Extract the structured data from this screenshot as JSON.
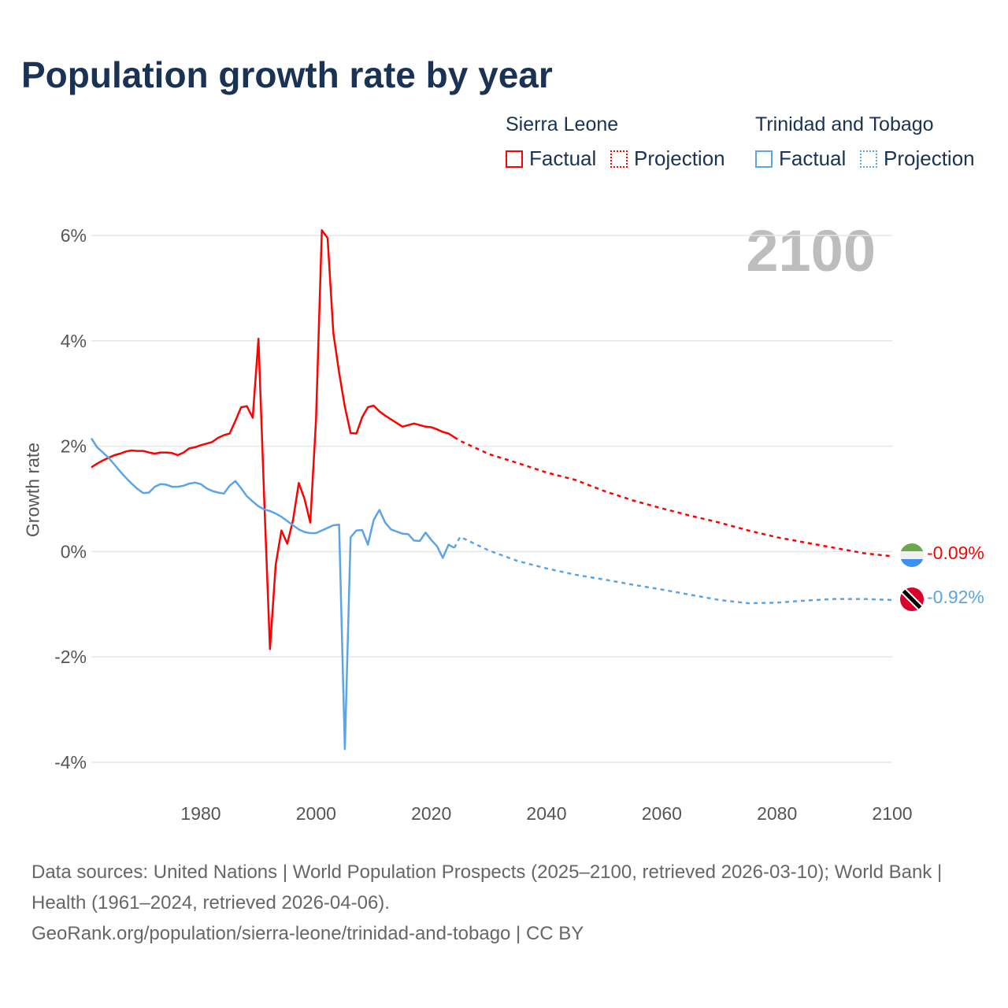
{
  "title": "Population growth rate by year",
  "current_year": "2100",
  "legend": {
    "groups": [
      {
        "name": "Sierra Leone",
        "factual": "Factual",
        "projection": "Projection",
        "color": "#ff0000"
      },
      {
        "name": "Trinidad and Tobago",
        "factual": "Factual",
        "projection": "Projection",
        "color": "#5ba4e6"
      }
    ]
  },
  "end_labels": {
    "sierra_leone": "-0.09%",
    "trinidad": "-0.92%"
  },
  "footer": {
    "sources": "Data sources: United Nations | World Population Prospects (2025–2100, retrieved 2026-03-10); World Bank | Health (1961–2024, retrieved 2026-04-06).",
    "credit": "GeoRank.org/population/sierra-leone/trinidad-and-tobago | CC BY"
  },
  "chart_data": {
    "type": "line",
    "title": "Population growth rate by year",
    "xlabel": "",
    "ylabel": "Growth rate",
    "xlim": [
      1961,
      2100
    ],
    "ylim": [
      -4,
      6
    ],
    "grid": true,
    "legend_position": "top-right",
    "xticks": [
      1980,
      2000,
      2020,
      2040,
      2060,
      2080,
      2100
    ],
    "yticks": [
      {
        "v": 6,
        "label": "6%"
      },
      {
        "v": 4,
        "label": "4%"
      },
      {
        "v": 2,
        "label": "2%"
      },
      {
        "v": 0,
        "label": "0%"
      },
      {
        "v": -2,
        "label": "-2%"
      },
      {
        "v": -4,
        "label": "-4%"
      }
    ],
    "series": [
      {
        "name": "Sierra Leone Factual",
        "color": "#ff0000",
        "dashed": false,
        "x_start": 1961,
        "values": [
          1.6,
          1.67,
          1.73,
          1.78,
          1.83,
          1.86,
          1.9,
          1.92,
          1.91,
          1.91,
          1.88,
          1.86,
          1.88,
          1.88,
          1.87,
          1.83,
          1.88,
          1.96,
          1.98,
          2.02,
          2.05,
          2.08,
          2.16,
          2.21,
          2.24,
          2.48,
          2.74,
          2.76,
          2.54,
          4.04,
          1.0,
          -1.85,
          -0.25,
          0.4,
          0.15,
          0.6,
          1.3,
          1.0,
          0.55,
          2.5,
          6.1,
          5.95,
          4.15,
          3.4,
          2.75,
          2.25,
          2.24,
          2.55,
          2.74,
          2.77,
          2.66,
          2.58,
          2.51,
          2.44,
          2.37,
          2.4,
          2.43,
          2.4,
          2.37,
          2.36,
          2.32,
          2.27,
          2.24,
          2.17
        ]
      },
      {
        "name": "Sierra Leone Projection",
        "color": "#ff0000",
        "dashed": true,
        "x": [
          2024,
          2025,
          2030,
          2035,
          2040,
          2045,
          2050,
          2055,
          2060,
          2065,
          2070,
          2075,
          2080,
          2085,
          2090,
          2095,
          2100
        ],
        "values": [
          2.17,
          2.1,
          1.85,
          1.68,
          1.5,
          1.36,
          1.15,
          0.97,
          0.82,
          0.68,
          0.55,
          0.4,
          0.27,
          0.17,
          0.07,
          -0.03,
          -0.09
        ]
      },
      {
        "name": "Trinidad and Tobago Factual",
        "color": "#5ba4e6",
        "dashed": false,
        "x_start": 1961,
        "values": [
          2.15,
          1.98,
          1.88,
          1.78,
          1.65,
          1.52,
          1.4,
          1.29,
          1.19,
          1.11,
          1.12,
          1.23,
          1.28,
          1.27,
          1.23,
          1.23,
          1.25,
          1.29,
          1.31,
          1.28,
          1.2,
          1.15,
          1.12,
          1.1,
          1.25,
          1.34,
          1.2,
          1.05,
          0.95,
          0.86,
          0.8,
          0.77,
          0.72,
          0.66,
          0.58,
          0.5,
          0.42,
          0.37,
          0.35,
          0.35,
          0.4,
          0.45,
          0.5,
          0.51,
          -3.75,
          0.27,
          0.4,
          0.41,
          0.13,
          0.6,
          0.79,
          0.55,
          0.42,
          0.38,
          0.34,
          0.33,
          0.21,
          0.2,
          0.36,
          0.22,
          0.1,
          -0.12,
          0.13,
          0.07
        ]
      },
      {
        "name": "Trinidad and Tobago Projection",
        "color": "#5ba4e6",
        "dashed": true,
        "x": [
          2024,
          2025,
          2030,
          2035,
          2040,
          2045,
          2050,
          2055,
          2060,
          2065,
          2070,
          2075,
          2080,
          2085,
          2090,
          2095,
          2100
        ],
        "values": [
          0.07,
          0.28,
          0.02,
          -0.18,
          -0.32,
          -0.44,
          -0.53,
          -0.63,
          -0.72,
          -0.82,
          -0.92,
          -0.98,
          -0.97,
          -0.93,
          -0.9,
          -0.9,
          -0.92
        ]
      }
    ]
  }
}
